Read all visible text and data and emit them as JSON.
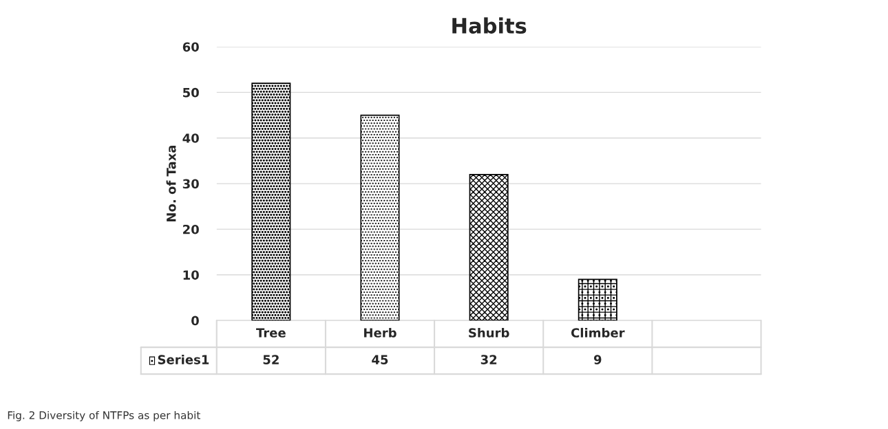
{
  "chart_data": {
    "type": "bar",
    "title": "Habits",
    "ylabel": "No. of Taxa",
    "categories": [
      "Tree",
      "Herb",
      "Shurb",
      "Climber",
      null
    ],
    "series": [
      {
        "name": "Series1",
        "color": "#000000",
        "values": [
          52,
          45,
          32,
          9,
          null
        ]
      }
    ],
    "ylim": [
      0,
      60
    ],
    "yticks": [
      0,
      10,
      20,
      30,
      40,
      50,
      60
    ],
    "grid": "y",
    "data_labels": true,
    "annotations": [
      "Fig. 2 Diversity of NTFPs as per habit"
    ]
  }
}
